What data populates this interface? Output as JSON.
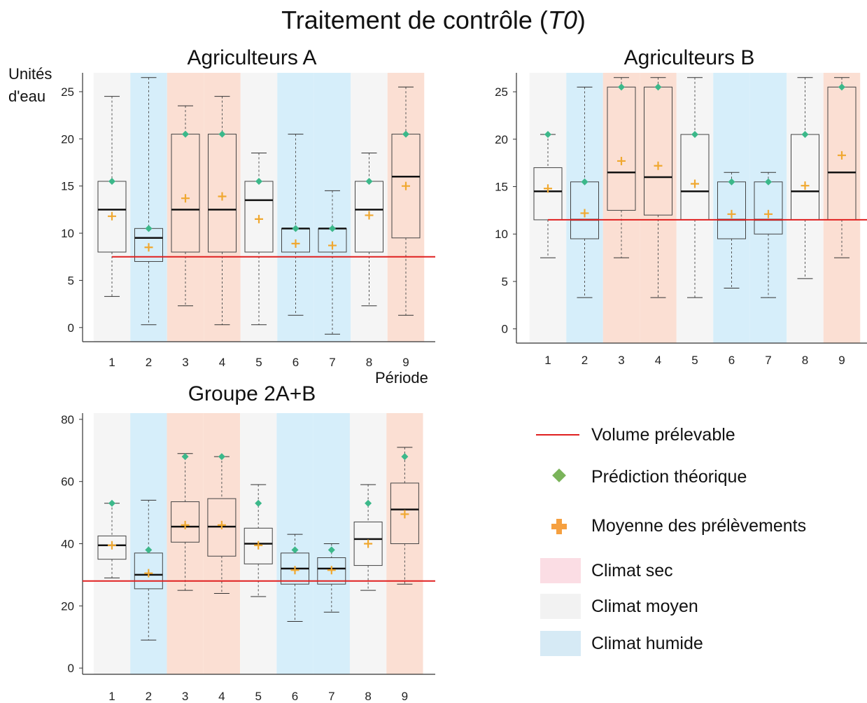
{
  "main_title": {
    "text": "Traitement de contrôle (",
    "code": "T0",
    "suffix": ")"
  },
  "panel_a": {
    "title": "Agriculteurs A",
    "ylabel_line1": "Unités",
    "ylabel_line2": "d'eau",
    "xlabel": "Période"
  },
  "panel_b": {
    "title": "Agriculteurs B"
  },
  "panel_c": {
    "title": "Groupe 2A+B"
  },
  "legend": {
    "volume": "Volume prélevable",
    "prediction": "Prédiction théorique",
    "mean": "Moyenne des prélèvements",
    "dry": "Climat sec",
    "medium": "Climat moyen",
    "humid": "Climat humide"
  },
  "colors": {
    "dry": "#fbdfd3",
    "medium": "#f5f5f5",
    "humid": "#d6eefa",
    "volume_line": "#e02020",
    "prediction": "#3cb88a",
    "legend_prediction": "#7ab45a",
    "mean": "#f0a830"
  },
  "chart_data": [
    {
      "type": "box",
      "title": "Agriculteurs A",
      "ylabel": "Unités d'eau",
      "xlabel": "Période",
      "categories": [
        "1",
        "2",
        "3",
        "4",
        "5",
        "6",
        "7",
        "8",
        "9"
      ],
      "climate": [
        "medium",
        "humid",
        "dry",
        "dry",
        "medium",
        "humid",
        "humid",
        "medium",
        "dry"
      ],
      "ylim": [
        -1.5,
        27
      ],
      "yticks": [
        0,
        5,
        10,
        15,
        20,
        25
      ],
      "whisker_low": [
        3.3,
        0.3,
        2.3,
        0.3,
        0.3,
        1.3,
        -0.7,
        2.3,
        1.3
      ],
      "q1": [
        8,
        7,
        8,
        8,
        8,
        8,
        8,
        8,
        9.5
      ],
      "median": [
        12.5,
        9.5,
        12.5,
        12.5,
        13.5,
        10.5,
        10.5,
        12.5,
        16
      ],
      "q3": [
        15.5,
        10.5,
        20.5,
        20.5,
        15.5,
        10.5,
        10.5,
        15.5,
        20.5
      ],
      "whisker_high": [
        24.5,
        26.5,
        23.5,
        24.5,
        18.5,
        20.5,
        14.5,
        18.5,
        25.5
      ],
      "mean": [
        11.8,
        8.5,
        13.7,
        13.9,
        11.5,
        8.9,
        8.7,
        11.9,
        15
      ],
      "theoretical_prediction": [
        15.5,
        10.5,
        20.5,
        20.5,
        15.5,
        10.5,
        10.5,
        15.5,
        20.5
      ],
      "volume_prelevable": 7.5
    },
    {
      "type": "box",
      "title": "Agriculteurs B",
      "categories": [
        "1",
        "2",
        "3",
        "4",
        "5",
        "6",
        "7",
        "8",
        "9"
      ],
      "climate": [
        "medium",
        "humid",
        "dry",
        "dry",
        "medium",
        "humid",
        "humid",
        "medium",
        "dry"
      ],
      "ylim": [
        -1.5,
        27
      ],
      "yticks": [
        0,
        5,
        10,
        15,
        20,
        25
      ],
      "whisker_low": [
        7.5,
        3.3,
        7.5,
        3.3,
        3.3,
        4.3,
        3.3,
        5.3,
        7.5
      ],
      "q1": [
        11.5,
        9.5,
        12.5,
        12,
        11.5,
        9.5,
        10,
        11.5,
        11.5
      ],
      "median": [
        14.5,
        11.5,
        16.5,
        16,
        14.5,
        11.5,
        11.5,
        14.5,
        16.5
      ],
      "q3": [
        17,
        15.5,
        25.5,
        25.5,
        20.5,
        15.5,
        15.5,
        20.5,
        25.5
      ],
      "whisker_high": [
        20.5,
        25.5,
        26.5,
        26.5,
        26.5,
        16.5,
        16.5,
        26.5,
        26.5
      ],
      "mean": [
        14.8,
        12.2,
        17.7,
        17.2,
        15.3,
        12.1,
        12.1,
        15.1,
        18.3
      ],
      "theoretical_prediction": [
        20.5,
        15.5,
        25.5,
        25.5,
        20.5,
        15.5,
        15.5,
        20.5,
        25.5
      ],
      "volume_prelevable": 11.5
    },
    {
      "type": "box",
      "title": "Groupe 2A+B",
      "categories": [
        "1",
        "2",
        "3",
        "4",
        "5",
        "6",
        "7",
        "8",
        "9"
      ],
      "climate": [
        "medium",
        "humid",
        "dry",
        "dry",
        "medium",
        "humid",
        "humid",
        "medium",
        "dry"
      ],
      "ylim": [
        -2,
        82
      ],
      "yticks": [
        0,
        20,
        40,
        60,
        80
      ],
      "whisker_low": [
        29,
        9,
        25,
        24,
        23,
        15,
        18,
        25,
        27
      ],
      "q1": [
        35,
        25.5,
        40.5,
        36,
        33.5,
        27,
        27,
        33,
        40
      ],
      "median": [
        39.5,
        30,
        45.5,
        45.5,
        40,
        32,
        32,
        41.5,
        51
      ],
      "q3": [
        42.5,
        37,
        53.5,
        54.5,
        45,
        37,
        35.5,
        47,
        59.5
      ],
      "whisker_high": [
        53,
        54,
        69,
        68,
        59,
        43,
        40,
        59,
        71
      ],
      "mean": [
        39.5,
        30.5,
        46,
        46,
        39.5,
        31.5,
        31.5,
        40,
        49.5
      ],
      "theoretical_prediction": [
        53,
        38,
        68,
        68,
        53,
        38,
        38,
        53,
        68
      ],
      "volume_prelevable": 28
    }
  ]
}
